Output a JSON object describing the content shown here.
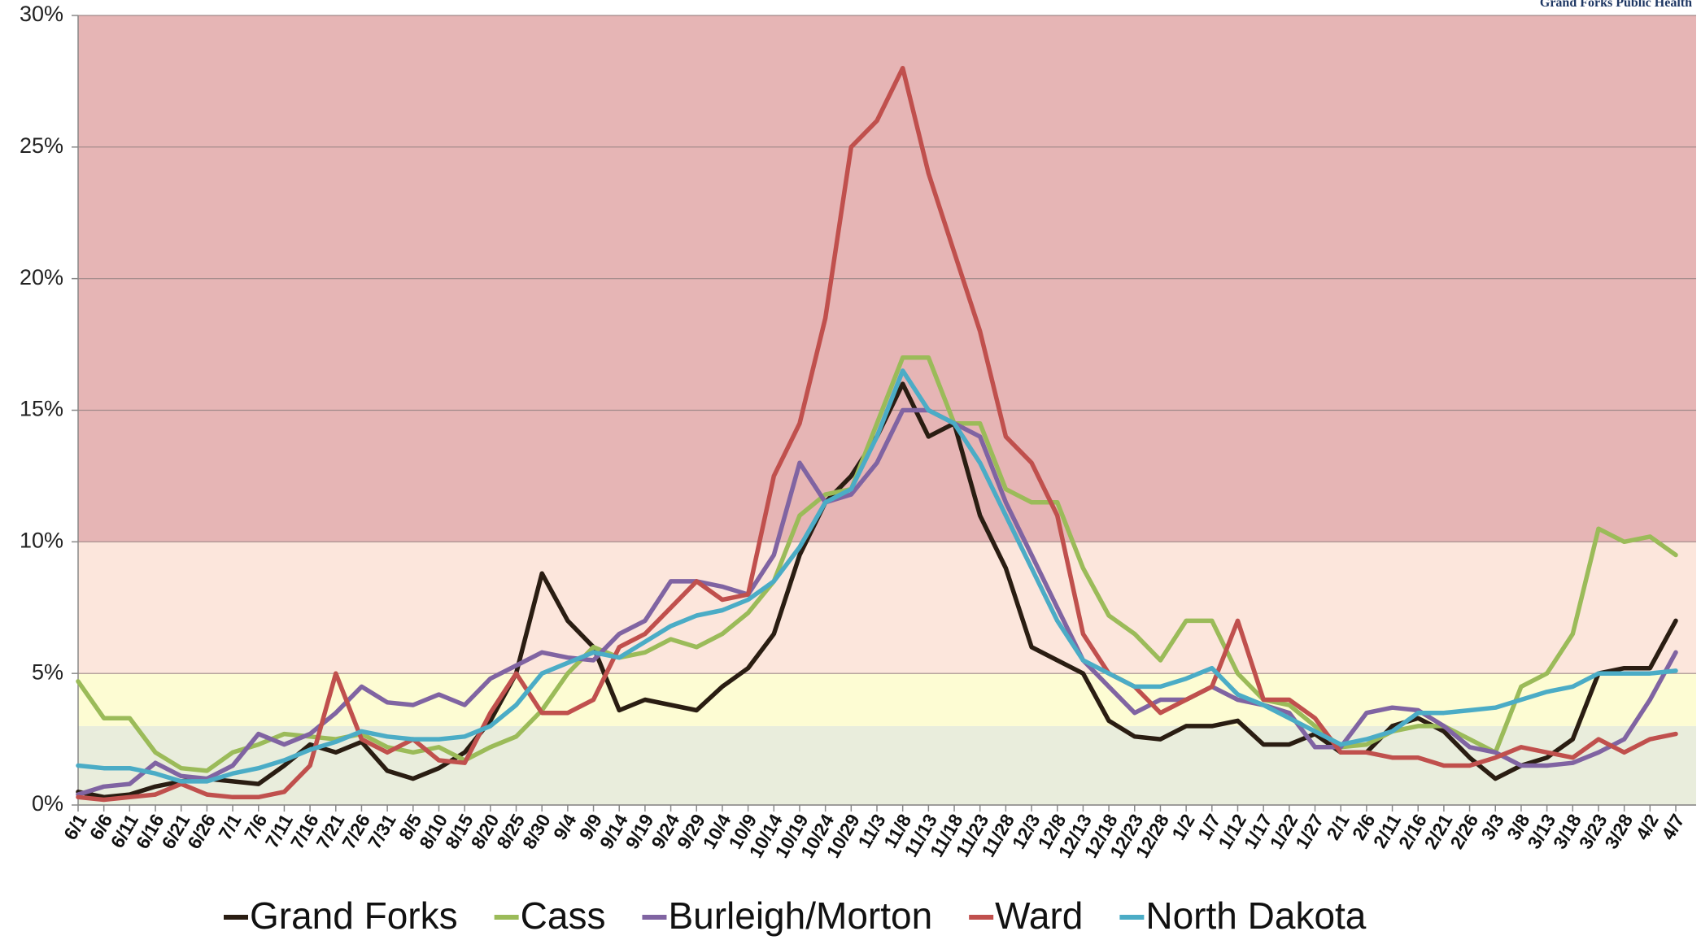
{
  "chart_data": {
    "type": "line",
    "source": "Grand Forks Public Health",
    "categories": [
      "6/1",
      "6/6",
      "6/11",
      "6/16",
      "6/21",
      "6/26",
      "7/1",
      "7/6",
      "7/11",
      "7/16",
      "7/21",
      "7/26",
      "7/31",
      "8/5",
      "8/10",
      "8/15",
      "8/20",
      "8/25",
      "8/30",
      "9/4",
      "9/9",
      "9/14",
      "9/19",
      "9/24",
      "9/29",
      "10/4",
      "10/9",
      "10/14",
      "10/19",
      "10/24",
      "10/29",
      "11/3",
      "11/8",
      "11/13",
      "11/18",
      "11/23",
      "11/28",
      "12/3",
      "12/8",
      "12/13",
      "12/18",
      "12/23",
      "12/28",
      "1/2",
      "1/7",
      "1/12",
      "1/17",
      "1/22",
      "1/27",
      "2/1",
      "2/6",
      "2/11",
      "2/16",
      "2/21",
      "2/26",
      "3/3",
      "3/8",
      "3/13",
      "3/18",
      "3/23",
      "3/28",
      "4/2",
      "4/7"
    ],
    "series": [
      {
        "name": "Grand Forks",
        "color": "#2a1d12",
        "values": [
          0.5,
          0.3,
          0.4,
          0.7,
          0.9,
          1.0,
          0.9,
          0.8,
          1.5,
          2.3,
          2.0,
          2.4,
          1.3,
          1.0,
          1.4,
          2.0,
          3.2,
          5.0,
          8.8,
          7.0,
          6.0,
          3.6,
          4.0,
          3.8,
          3.6,
          4.5,
          5.2,
          6.5,
          9.5,
          11.5,
          12.5,
          14.0,
          16.0,
          14.0,
          14.5,
          11.0,
          9.0,
          6.0,
          5.5,
          5.0,
          3.2,
          2.6,
          2.5,
          3.0,
          3.0,
          3.2,
          2.3,
          2.3,
          2.7,
          2.0,
          2.0,
          3.0,
          3.3,
          2.8,
          1.8,
          1.0,
          1.5,
          1.8,
          2.5,
          5.0,
          5.2,
          5.2,
          7.0
        ]
      },
      {
        "name": "Cass",
        "color": "#9bbb59",
        "values": [
          4.7,
          3.3,
          3.3,
          2.0,
          1.4,
          1.3,
          2.0,
          2.3,
          2.7,
          2.6,
          2.5,
          2.7,
          2.2,
          2.0,
          2.2,
          1.7,
          2.2,
          2.6,
          3.6,
          5.0,
          6.0,
          5.6,
          5.8,
          6.3,
          6.0,
          6.5,
          7.3,
          8.5,
          11.0,
          11.8,
          12.0,
          14.5,
          17.0,
          17.0,
          14.5,
          14.5,
          12.0,
          11.5,
          11.5,
          9.0,
          7.2,
          6.5,
          5.5,
          7.0,
          7.0,
          5.0,
          4.0,
          3.8,
          3.0,
          2.2,
          2.3,
          2.8,
          3.0,
          3.0,
          2.5,
          2.0,
          4.5,
          5.0,
          6.5,
          10.5,
          10.0,
          10.2,
          9.5
        ]
      },
      {
        "name": "Burleigh/Morton",
        "color": "#8064a2",
        "values": [
          0.4,
          0.7,
          0.8,
          1.6,
          1.1,
          1.0,
          1.5,
          2.7,
          2.3,
          2.7,
          3.5,
          4.5,
          3.9,
          3.8,
          4.2,
          3.8,
          4.8,
          5.3,
          5.8,
          5.6,
          5.5,
          6.5,
          7.0,
          8.5,
          8.5,
          8.3,
          8.0,
          9.5,
          13.0,
          11.5,
          11.8,
          13.0,
          15.0,
          15.0,
          14.5,
          14.0,
          11.5,
          9.5,
          7.5,
          5.5,
          4.5,
          3.5,
          4.0,
          4.0,
          4.5,
          4.0,
          3.8,
          3.5,
          2.2,
          2.2,
          3.5,
          3.7,
          3.6,
          3.0,
          2.2,
          2.0,
          1.5,
          1.5,
          1.6,
          2.0,
          2.5,
          4.0,
          5.8
        ]
      },
      {
        "name": "Ward",
        "color": "#c0504d",
        "values": [
          0.3,
          0.2,
          0.3,
          0.4,
          0.8,
          0.4,
          0.3,
          0.3,
          0.5,
          1.5,
          5.0,
          2.5,
          2.0,
          2.5,
          1.7,
          1.6,
          3.5,
          5.0,
          3.5,
          3.5,
          4.0,
          6.0,
          6.5,
          7.5,
          8.5,
          7.8,
          8.0,
          12.5,
          14.5,
          18.5,
          25.0,
          26.0,
          28.0,
          24.0,
          21.0,
          18.0,
          14.0,
          13.0,
          11.0,
          6.5,
          5.0,
          4.5,
          3.5,
          4.0,
          4.5,
          7.0,
          4.0,
          4.0,
          3.3,
          2.0,
          2.0,
          1.8,
          1.8,
          1.5,
          1.5,
          1.8,
          2.2,
          2.0,
          1.8,
          2.5,
          2.0,
          2.5,
          2.7
        ]
      },
      {
        "name": "North Dakota",
        "color": "#4bacc6",
        "values": [
          1.5,
          1.4,
          1.4,
          1.2,
          0.9,
          0.9,
          1.2,
          1.4,
          1.7,
          2.1,
          2.4,
          2.8,
          2.6,
          2.5,
          2.5,
          2.6,
          3.0,
          3.8,
          5.0,
          5.4,
          5.8,
          5.6,
          6.2,
          6.8,
          7.2,
          7.4,
          7.8,
          8.5,
          9.8,
          11.5,
          12.0,
          14.0,
          16.5,
          15.0,
          14.5,
          13.0,
          11.0,
          9.0,
          7.0,
          5.5,
          5.0,
          4.5,
          4.5,
          4.8,
          5.2,
          4.2,
          3.8,
          3.3,
          2.8,
          2.3,
          2.5,
          2.8,
          3.5,
          3.5,
          3.6,
          3.7,
          4.0,
          4.3,
          4.5,
          5.0,
          5.0,
          5.0,
          5.1
        ]
      }
    ],
    "ylim": [
      0,
      30
    ],
    "yticks": [
      {
        "value": 0,
        "label": "0%"
      },
      {
        "value": 5,
        "label": "5%"
      },
      {
        "value": 10,
        "label": "10%"
      },
      {
        "value": 15,
        "label": "15%"
      },
      {
        "value": 20,
        "label": "20%"
      },
      {
        "value": 25,
        "label": "25%"
      },
      {
        "value": 30,
        "label": "30%"
      }
    ],
    "grid": true,
    "bands": [
      {
        "from": 0,
        "to": 3,
        "color": "#e9eddc"
      },
      {
        "from": 3,
        "to": 5,
        "color": "#fdfcd3"
      },
      {
        "from": 5,
        "to": 10,
        "color": "#fce6dc"
      },
      {
        "from": 10,
        "to": 30,
        "color": "#e6b5b5"
      }
    ],
    "legend": "bottom"
  }
}
